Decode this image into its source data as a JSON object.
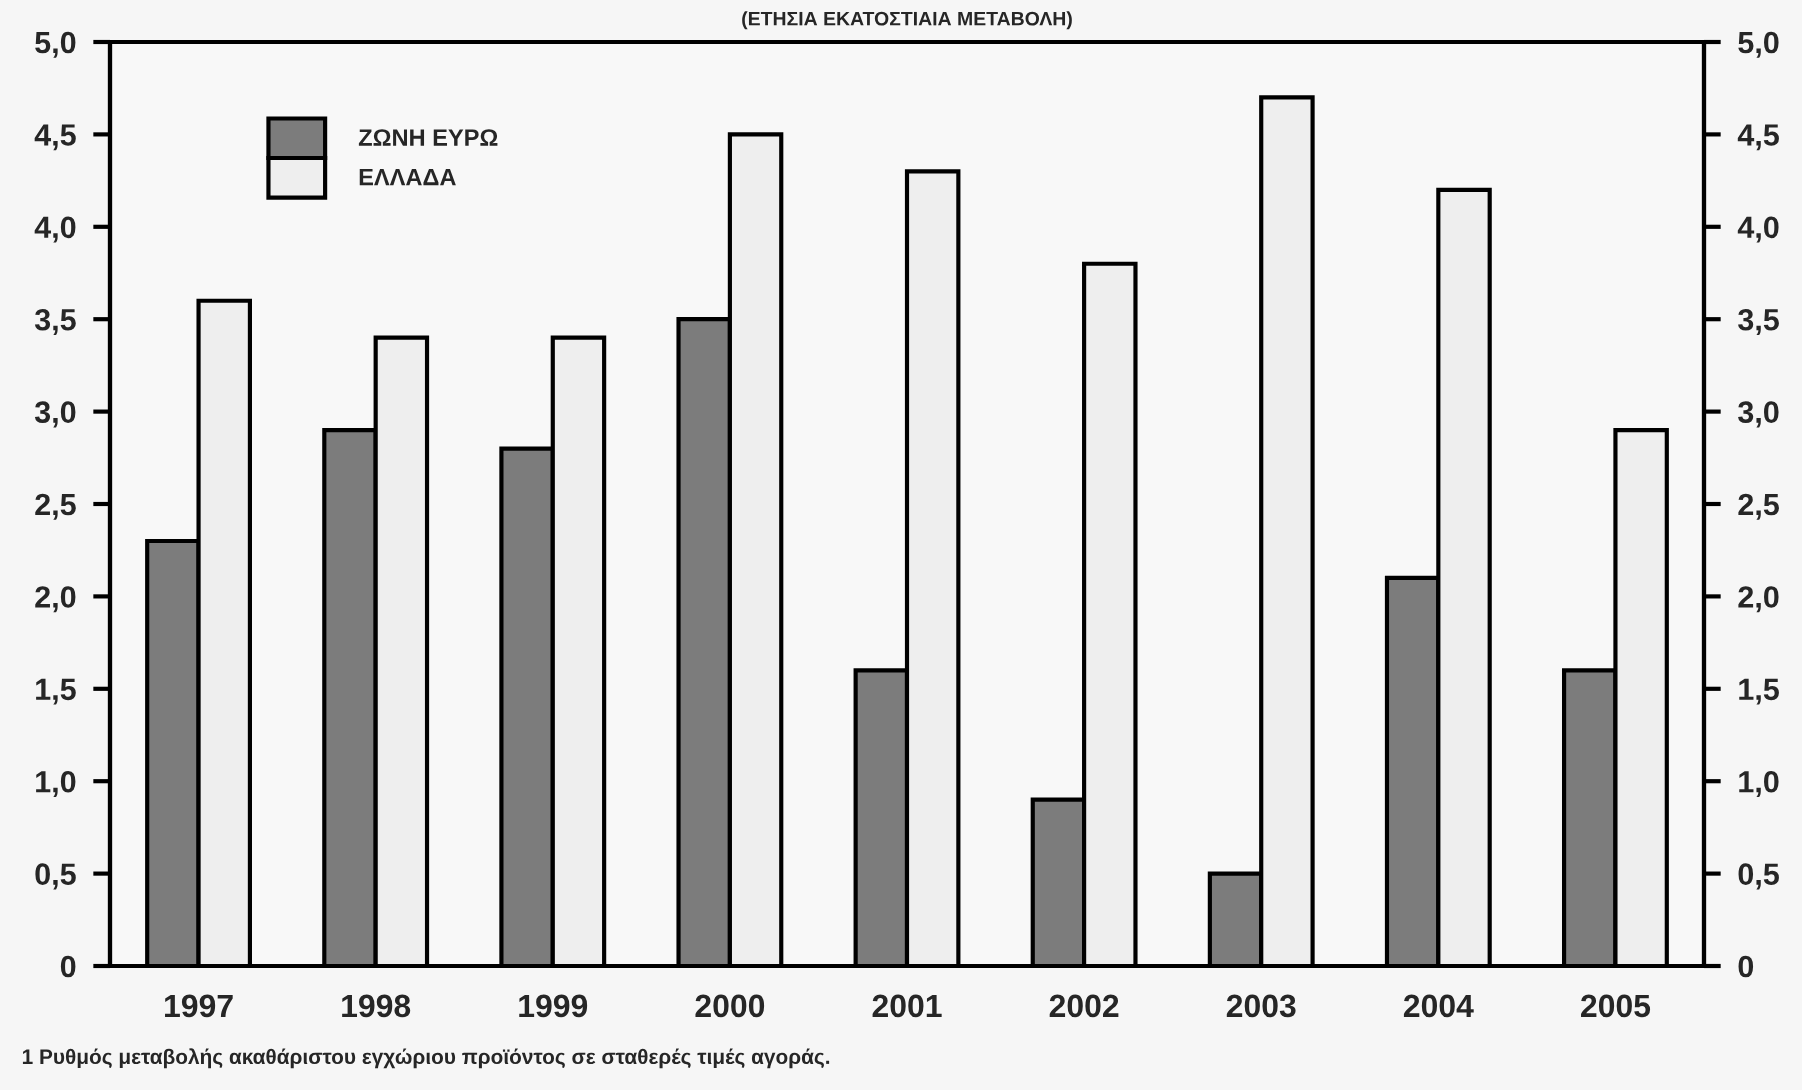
{
  "chart_data": {
    "type": "bar",
    "title": "(ΕΤΗΣΙΑ ΕΚΑΤΟΣΤΙΑΙΑ ΜΕΤΑΒΟΛΗ)",
    "categories": [
      "1997",
      "1998",
      "1999",
      "2000",
      "2001",
      "2002",
      "2003",
      "2004",
      "2005"
    ],
    "series": [
      {
        "name": "ΖΩΝΗ ΕΥΡΩ",
        "color": "#7c7c7c",
        "values": [
          2.3,
          2.9,
          2.8,
          3.5,
          1.6,
          0.9,
          0.5,
          2.1,
          1.6
        ]
      },
      {
        "name": "ΕΛΛΑΔΑ",
        "color": "#eeeeee",
        "values": [
          3.6,
          3.4,
          3.4,
          4.5,
          4.3,
          3.8,
          4.7,
          4.2,
          2.9
        ]
      }
    ],
    "ylim": [
      0,
      5
    ],
    "yticks": [
      0,
      {
        "value": 0.5,
        "label": "0,5"
      },
      {
        "value": 1.0,
        "label": "1,0"
      },
      {
        "value": 1.5,
        "label": "1,5"
      },
      {
        "value": 2.0,
        "label": "2,0"
      },
      {
        "value": 2.5,
        "label": "2,5"
      },
      {
        "value": 3.0,
        "label": "3,0"
      },
      {
        "value": 3.5,
        "label": "3,5"
      },
      {
        "value": 4.0,
        "label": "4,0"
      },
      {
        "value": 4.5,
        "label": "4,5"
      },
      {
        "value": 5.0,
        "label": "5,0"
      }
    ],
    "y2lim": [
      0,
      5
    ],
    "y2ticks": [
      0,
      {
        "value": 0.5,
        "label": "0,5"
      },
      {
        "value": 1.0,
        "label": "1,0"
      },
      {
        "value": 1.5,
        "label": "1,5"
      },
      {
        "value": 2.0,
        "label": "2,0"
      },
      {
        "value": 2.5,
        "label": "2,5"
      },
      {
        "value": 3.0,
        "label": "3,0"
      },
      {
        "value": 3.5,
        "label": "3,5"
      },
      {
        "value": 4.0,
        "label": "4,0"
      },
      {
        "value": 4.5,
        "label": "4,5"
      },
      {
        "value": 5.0,
        "label": "5,0"
      }
    ],
    "legend": "top left",
    "annotations": [
      "1 Ρυθμός μεταβολής ακαθάριστου εγχώριου προϊόντος σε σταθερές τιμές αγοράς."
    ]
  }
}
